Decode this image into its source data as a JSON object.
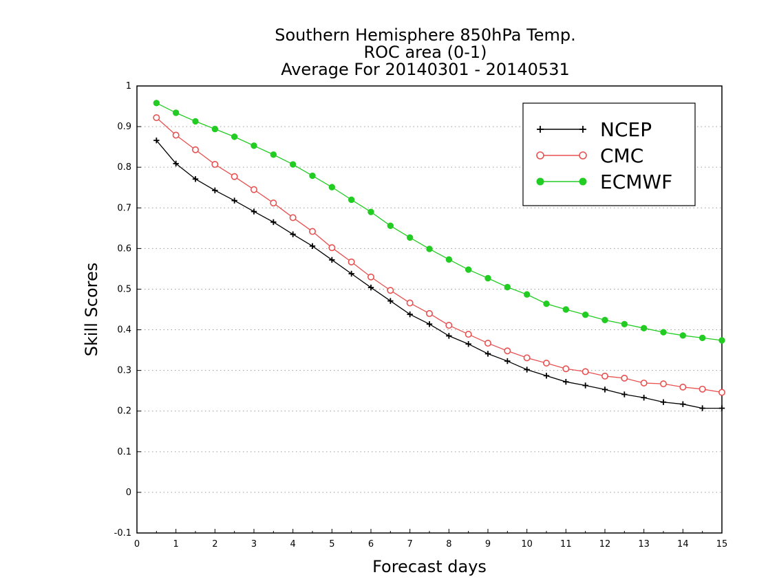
{
  "chart_data": {
    "type": "line",
    "title": [
      "Southern Hemisphere 850hPa Temp.",
      "ROC area (0-1)",
      "Average For 20140301 - 20140531"
    ],
    "xlabel": "Forecast days",
    "ylabel": "Skill Scores",
    "xlim": [
      0,
      15
    ],
    "ylim": [
      -0.1,
      1
    ],
    "xticks": [
      "0",
      "1",
      "2",
      "3",
      "4",
      "5",
      "6",
      "7",
      "8",
      "9",
      "10",
      "11",
      "12",
      "13",
      "14",
      "15"
    ],
    "yticks": [
      "-0.1",
      "0",
      "0.1",
      "0.2",
      "0.3",
      "0.4",
      "0.5",
      "0.6",
      "0.7",
      "0.8",
      "0.9",
      "1"
    ],
    "grid": "horizontal-dotted",
    "legend_position": "top-right",
    "x": [
      0.5,
      1,
      1.5,
      2,
      2.5,
      3,
      3.5,
      4,
      4.5,
      5,
      5.5,
      6,
      6.5,
      7,
      7.5,
      8,
      8.5,
      9,
      9.5,
      10,
      10.5,
      11,
      11.5,
      12,
      12.5,
      13,
      13.5,
      14,
      14.5,
      15
    ],
    "series": [
      {
        "name": "NCEP",
        "color": "#000000",
        "marker": "plus",
        "values": [
          0.866,
          0.809,
          0.771,
          0.743,
          0.718,
          0.691,
          0.665,
          0.635,
          0.606,
          0.572,
          0.538,
          0.504,
          0.471,
          0.438,
          0.414,
          0.385,
          0.365,
          0.341,
          0.323,
          0.302,
          0.287,
          0.272,
          0.263,
          0.253,
          0.241,
          0.233,
          0.222,
          0.217,
          0.207,
          0.207
        ]
      },
      {
        "name": "CMC",
        "color": "#e85050",
        "marker": "open-circle",
        "values": [
          0.922,
          0.879,
          0.843,
          0.807,
          0.777,
          0.745,
          0.712,
          0.676,
          0.642,
          0.602,
          0.567,
          0.53,
          0.497,
          0.466,
          0.44,
          0.411,
          0.389,
          0.367,
          0.348,
          0.331,
          0.318,
          0.304,
          0.297,
          0.286,
          0.281,
          0.269,
          0.267,
          0.259,
          0.254,
          0.246
        ]
      },
      {
        "name": "ECMWF",
        "color": "#22cc22",
        "marker": "filled-circle",
        "values": [
          0.958,
          0.934,
          0.913,
          0.894,
          0.875,
          0.853,
          0.831,
          0.807,
          0.779,
          0.751,
          0.72,
          0.69,
          0.656,
          0.627,
          0.599,
          0.573,
          0.548,
          0.527,
          0.505,
          0.487,
          0.464,
          0.45,
          0.437,
          0.424,
          0.414,
          0.404,
          0.394,
          0.386,
          0.38,
          0.374
        ]
      }
    ]
  }
}
